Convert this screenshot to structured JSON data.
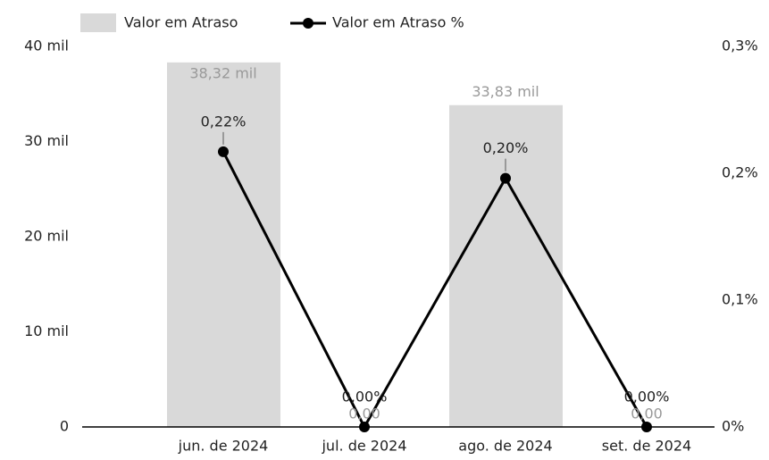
{
  "chart_data": {
    "type": "bar_line",
    "categories": [
      "jun. de 2024",
      "jul. de 2024",
      "ago. de 2024",
      "set. de 2024"
    ],
    "series": [
      {
        "name": "Valor em Atraso",
        "color": "#d9d9d9",
        "type": "bar",
        "axis": "y",
        "values": [
          38320,
          0,
          33830,
          0
        ],
        "value_labels": [
          "38,32 mil",
          "0,00",
          "33,83 mil",
          "0,00"
        ]
      },
      {
        "name": "Valor em Atraso %",
        "color": "#000000",
        "type": "line",
        "axis": "y2",
        "values": [
          0.217,
          0,
          0.196,
          0
        ],
        "value_labels": [
          "0,22%",
          "0,00%",
          "0,20%",
          "0,00%"
        ]
      }
    ],
    "ylim": [
      0,
      40000
    ],
    "yticks": [
      0,
      {
        "value": 10000,
        "label": "10 mil"
      },
      {
        "value": 20000,
        "label": "20 mil"
      },
      {
        "value": 30000,
        "label": "30 mil"
      },
      {
        "value": 40000,
        "label": "40 mil"
      }
    ],
    "y2lim": [
      0,
      0.3
    ],
    "y2ticks": [
      {
        "value": 0,
        "label": "0%"
      },
      {
        "value": 0.1,
        "label": "0,1%"
      },
      {
        "value": 0.2,
        "label": "0,2%"
      },
      {
        "value": 0.3,
        "label": "0,3%"
      }
    ],
    "legend": "top-left"
  }
}
